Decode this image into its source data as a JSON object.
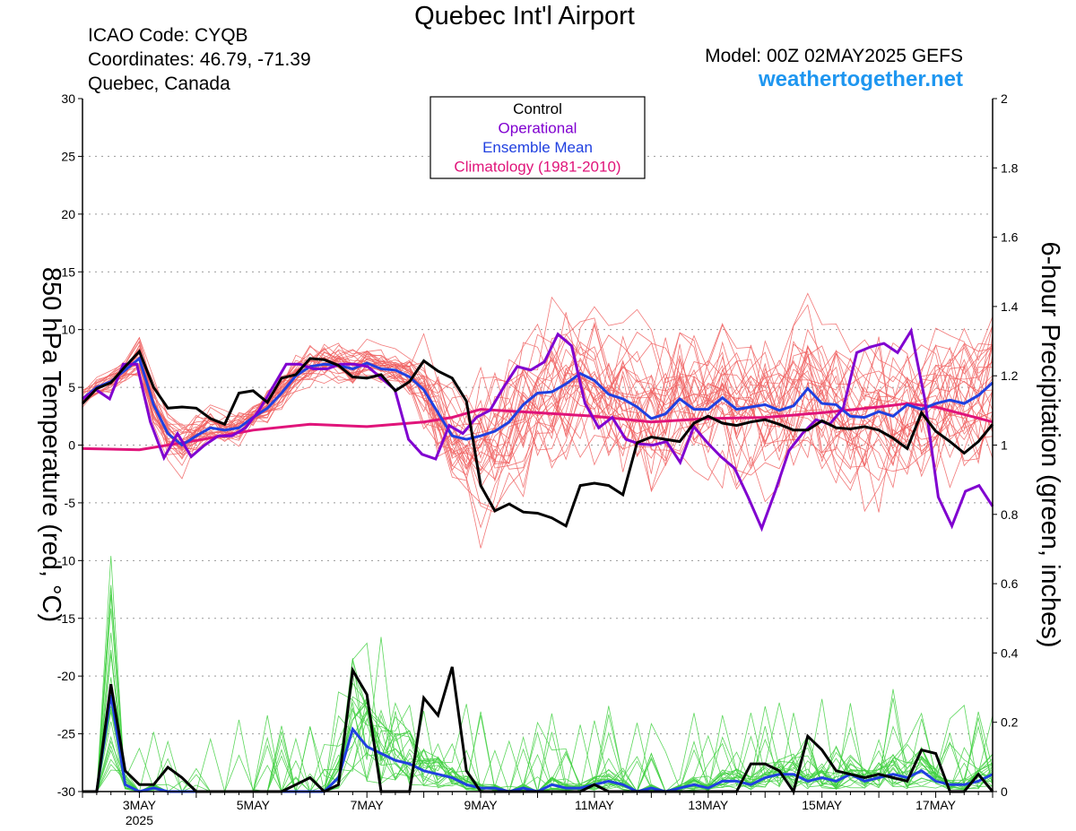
{
  "header": {
    "title": "Quebec Int'l Airport",
    "icao": "ICAO Code: CYQB",
    "coords": "Coordinates: 46.79, -71.39",
    "location": "Quebec, Canada",
    "model": "Model: 00Z 02MAY2025 GEFS",
    "brand": "weathertogether.net"
  },
  "chart_data": {
    "type": "line",
    "x_unit": "days since 2025-05-02 00Z (6-hourly)",
    "xlim": [
      0,
      16
    ],
    "x_ticks": [
      {
        "x": 1,
        "label": "3MAY",
        "sub": "2025"
      },
      {
        "x": 3,
        "label": "5MAY"
      },
      {
        "x": 5,
        "label": "7MAY"
      },
      {
        "x": 7,
        "label": "9MAY"
      },
      {
        "x": 9,
        "label": "11MAY"
      },
      {
        "x": 11,
        "label": "13MAY"
      },
      {
        "x": 13,
        "label": "15MAY"
      },
      {
        "x": 15,
        "label": "17MAY"
      }
    ],
    "y_left": {
      "label": "850 hPa Temperature (red, °C)",
      "lim": [
        -30,
        30
      ],
      "ticks": [
        "-30",
        "-25",
        "-20",
        "-15",
        "-10",
        "-5",
        "0",
        "5",
        "10",
        "15",
        "20",
        "25",
        "30"
      ]
    },
    "y_right": {
      "label": "6-hour Precipitation (green, inches)",
      "lim": [
        0,
        2
      ],
      "ticks": [
        "0",
        "0.2",
        "0.4",
        "0.6",
        "0.8",
        "1",
        "1.2",
        "1.4",
        "1.6",
        "1.8",
        "2"
      ]
    },
    "grid": true,
    "legend": {
      "position": "top-center",
      "entries": [
        {
          "label": "Control",
          "color": "#000000"
        },
        {
          "label": "Operational",
          "color": "#8000d0"
        },
        {
          "label": "Ensemble Mean",
          "color": "#2040e0"
        },
        {
          "label": "Climatology (1981-2010)",
          "color": "#e0147a"
        }
      ]
    },
    "colors": {
      "members_temp": "#f06060",
      "members_precip": "#40d040",
      "control": "#000000",
      "operational": "#8000d0",
      "mean": "#2040e0",
      "climo": "#e0147a"
    },
    "temperature": {
      "control": [
        3.6,
        4.9,
        5.4,
        6.8,
        8.1,
        5.0,
        3.2,
        3.3,
        3.2,
        2.3,
        1.8,
        4.5,
        4.7,
        3.7,
        5.8,
        6.1,
        7.5,
        7.4,
        6.9,
        5.9,
        5.8,
        6.1,
        4.7,
        5.5,
        7.3,
        6.4,
        5.8,
        3.8,
        -3.5,
        -5.7,
        -5.1,
        -5.8,
        -5.9,
        -6.3,
        -7.0,
        -3.5,
        -3.3,
        -3.5,
        -4.3,
        0.2,
        0.7,
        0.5,
        0.3,
        1.9,
        2.5,
        1.9,
        1.7,
        2.0,
        2.2,
        1.8,
        1.3,
        1.3,
        2.1,
        1.5,
        1.4,
        1.6,
        1.3,
        0.6,
        -0.3,
        2.8,
        1.2,
        0.3,
        -0.7,
        0.3,
        1.8
      ],
      "operational": [
        4.0,
        4.8,
        4.0,
        7.0,
        7.0,
        2.0,
        -1.1,
        1.0,
        -1.0,
        0.0,
        0.8,
        0.8,
        1.5,
        3.0,
        5.0,
        7.0,
        7.0,
        6.6,
        6.6,
        7.0,
        7.0,
        6.8,
        5.8,
        4.8,
        0.5,
        -0.8,
        -1.2,
        1.7,
        1.0,
        2.4,
        3.0,
        5.0,
        6.8,
        6.5,
        7.2,
        9.6,
        8.6,
        3.6,
        1.5,
        2.4,
        0.5,
        0.1,
        0.0,
        0.3,
        -1.5,
        1.6,
        0.2,
        -1.0,
        -2.0,
        -4.5,
        -7.2,
        -4.0,
        -0.5,
        1.0,
        2.2,
        1.8,
        3.2,
        8.0,
        8.5,
        8.8,
        8.0,
        9.9,
        4.0,
        -4.5,
        -7.0,
        -4.0,
        -3.5,
        -5.3
      ],
      "mean": [
        4.0,
        5.0,
        5.5,
        6.5,
        7.5,
        3.5,
        1.0,
        0.0,
        0.8,
        1.5,
        1.3,
        1.5,
        2.4,
        3.2,
        4.5,
        6.0,
        6.8,
        7.0,
        6.9,
        6.6,
        7.1,
        6.6,
        6.5,
        5.9,
        4.8,
        2.8,
        0.8,
        0.5,
        0.8,
        1.2,
        2.0,
        3.5,
        4.5,
        4.6,
        5.3,
        6.2,
        5.6,
        4.4,
        4.0,
        3.3,
        2.3,
        2.7,
        4.0,
        3.1,
        3.1,
        4.1,
        3.1,
        3.3,
        3.5,
        3.0,
        3.4,
        4.9,
        3.6,
        3.5,
        2.5,
        2.4,
        2.9,
        2.5,
        3.5,
        3.1,
        3.6,
        3.9,
        3.6,
        4.3,
        5.4
      ],
      "climatology": [
        [
          0,
          -0.3
        ],
        [
          1,
          -0.4
        ],
        [
          2,
          0.4
        ],
        [
          3,
          1.3
        ],
        [
          4,
          1.8
        ],
        [
          5,
          1.6
        ],
        [
          6,
          2.0
        ],
        [
          6.5,
          2.4
        ],
        [
          7,
          3.1
        ],
        [
          8,
          2.8
        ],
        [
          9,
          2.5
        ],
        [
          10,
          2.0
        ],
        [
          11,
          2.3
        ],
        [
          12,
          2.4
        ],
        [
          13,
          2.8
        ],
        [
          14,
          3.3
        ],
        [
          14.5,
          3.6
        ],
        [
          15,
          3.3
        ],
        [
          16,
          2.0
        ]
      ]
    },
    "precipitation": {
      "control": [
        0,
        0,
        0.31,
        0.06,
        0.02,
        0.02,
        0.07,
        0.04,
        0,
        0,
        0,
        0,
        0,
        0,
        0,
        0.02,
        0.04,
        0,
        0.02,
        0.35,
        0.28,
        0,
        0,
        0,
        0.27,
        0.22,
        0.36,
        0.06,
        0,
        0,
        0,
        0,
        0,
        0,
        0,
        0,
        0.02,
        0,
        0,
        0,
        0,
        0,
        0,
        0,
        0,
        0,
        0,
        0.08,
        0.08,
        0.06,
        0,
        0.16,
        0.12,
        0.06,
        0.05,
        0.04,
        0.05,
        0.04,
        0.03,
        0.12,
        0.11,
        0,
        0,
        0.05,
        0
      ],
      "mean": [
        0,
        0,
        0.28,
        0.02,
        0,
        0.01,
        0,
        0,
        0,
        0,
        0,
        0,
        0,
        0,
        0,
        0,
        0,
        0,
        0.04,
        0.18,
        0.13,
        0.11,
        0.09,
        0.08,
        0.06,
        0.05,
        0.04,
        0.02,
        0.01,
        0.01,
        0,
        0.01,
        0,
        0.02,
        0.01,
        0.01,
        0.02,
        0.03,
        0.02,
        0,
        0.01,
        0,
        0.01,
        0.02,
        0.01,
        0.03,
        0.03,
        0.02,
        0.04,
        0.05,
        0.05,
        0.03,
        0.04,
        0.03,
        0.05,
        0.03,
        0.04,
        0.05,
        0.04,
        0.06,
        0.03,
        0.02,
        0.02,
        0.03,
        0.05
      ]
    },
    "members": {
      "count": 30,
      "note": "spaghetti of individual GEFS ensemble members"
    }
  }
}
